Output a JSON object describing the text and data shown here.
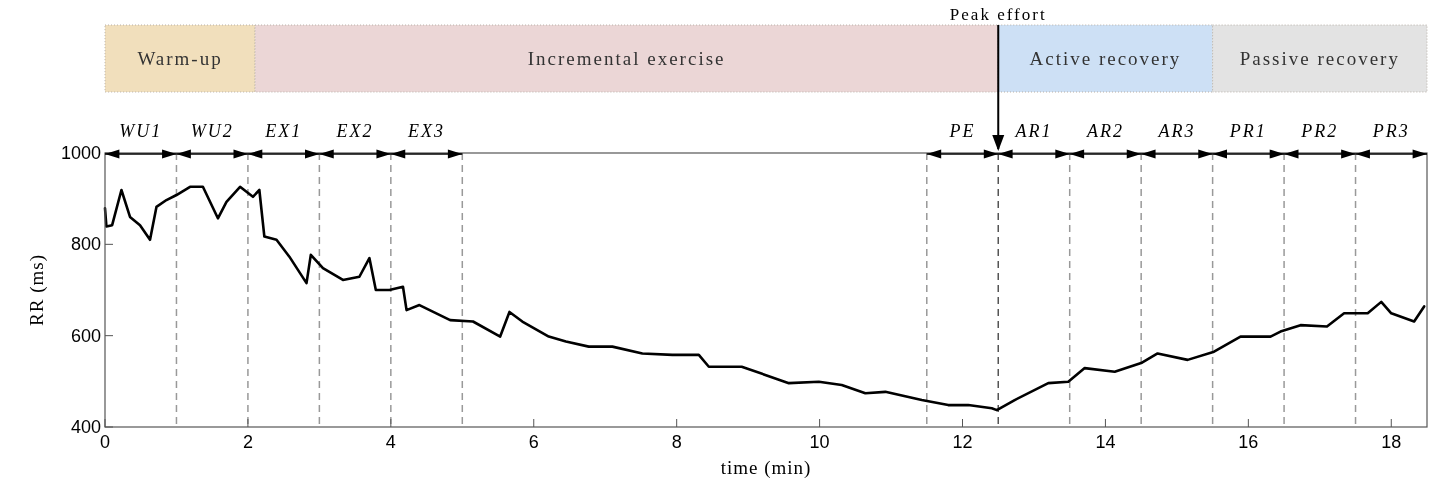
{
  "chart_data": {
    "type": "line",
    "xlabel": "time (min)",
    "ylabel": "RR (ms)",
    "xlim": [
      0,
      18.5
    ],
    "xticks": [
      0,
      2,
      4,
      6,
      8,
      10,
      12,
      14,
      16,
      18
    ],
    "ylim": [
      400,
      1000
    ],
    "yticks": [
      400,
      600,
      800,
      1000
    ],
    "grid": false,
    "line_style": "solid",
    "marker": "none",
    "series": [
      {
        "color": "#000000",
        "x": [
          0,
          0.02,
          0.1,
          0.23,
          0.35,
          0.49,
          0.63,
          0.72,
          0.86,
          1.0,
          1.19,
          1.37,
          1.58,
          1.7,
          1.89,
          2.07,
          2.16,
          2.23,
          2.4,
          2.58,
          2.82,
          2.88,
          3.05,
          3.33,
          3.56,
          3.7,
          3.79,
          3.98,
          4.17,
          4.22,
          4.4,
          4.83,
          5.15,
          5.53,
          5.66,
          5.84,
          6.21,
          6.45,
          6.77,
          7.1,
          7.52,
          7.94,
          8.31,
          8.45,
          8.91,
          9.24,
          9.57,
          9.99,
          10.31,
          10.64,
          10.92,
          11.43,
          11.8,
          12.08,
          12.41,
          12.48,
          12.73,
          13.2,
          13.48,
          13.71,
          14.13,
          14.5,
          14.73,
          15.15,
          15.52,
          15.89,
          16.31,
          16.45,
          16.73,
          17.1,
          17.34,
          17.67,
          17.86,
          18.0,
          18.32,
          18.46
        ],
        "values": [
          879,
          839,
          842,
          919,
          860,
          842,
          810,
          882,
          897,
          908,
          926,
          926,
          857,
          893,
          926,
          904,
          919,
          817,
          810,
          773,
          715,
          777,
          748,
          722,
          729,
          770,
          700,
          700,
          707,
          656,
          667,
          634,
          631,
          598,
          652,
          631,
          598,
          587,
          576,
          576,
          561,
          558,
          558,
          532,
          532,
          514,
          496,
          499,
          492,
          474,
          477,
          459,
          448,
          448,
          441,
          437,
          459,
          496,
          499,
          529,
          521,
          540,
          561,
          547,
          565,
          598,
          598,
          609,
          623,
          620,
          649,
          649,
          674,
          649,
          631,
          664
        ]
      }
    ],
    "ref_lines": [
      {
        "axis": "x",
        "value": 1,
        "color": "#999999",
        "line_style": "dashed"
      },
      {
        "axis": "x",
        "value": 2,
        "color": "#999999",
        "line_style": "dashed"
      },
      {
        "axis": "x",
        "value": 3,
        "color": "#999999",
        "line_style": "dashed"
      },
      {
        "axis": "x",
        "value": 4,
        "color": "#999999",
        "line_style": "dashed"
      },
      {
        "axis": "x",
        "value": 5,
        "color": "#999999",
        "line_style": "dashed"
      },
      {
        "axis": "x",
        "value": 11.5,
        "color": "#999999",
        "line_style": "dashed"
      },
      {
        "axis": "x",
        "value": 12.5,
        "color": "#555555",
        "line_style": "dashed",
        "label": "Peak effort"
      },
      {
        "axis": "x",
        "value": 13.5,
        "color": "#999999",
        "line_style": "dashed"
      },
      {
        "axis": "x",
        "value": 14.5,
        "color": "#999999",
        "line_style": "dashed"
      },
      {
        "axis": "x",
        "value": 15.5,
        "color": "#999999",
        "line_style": "dashed"
      },
      {
        "axis": "x",
        "value": 16.5,
        "color": "#999999",
        "line_style": "dashed"
      },
      {
        "axis": "x",
        "value": 17.5,
        "color": "#999999",
        "line_style": "dashed"
      }
    ],
    "bands": [
      {
        "axis": "x",
        "from": 0,
        "to": 2.1,
        "label": "Warm-up",
        "color": "#f1dfbc"
      },
      {
        "axis": "x",
        "from": 2.1,
        "to": 12.5,
        "label": "Incremental exercise",
        "color": "#ebd6d6"
      },
      {
        "axis": "x",
        "from": 12.5,
        "to": 15.5,
        "label": "Active recovery",
        "color": "#cde0f5"
      },
      {
        "axis": "x",
        "from": 15.5,
        "to": 18.5,
        "label": "Passive recovery",
        "color": "#e3e3e3"
      }
    ],
    "annotations": [
      "WU1",
      "WU2",
      "EX1",
      "EX2",
      "EX3",
      "PE",
      "AR1",
      "AR2",
      "AR3",
      "PR1",
      "PR2",
      "PR3"
    ]
  }
}
